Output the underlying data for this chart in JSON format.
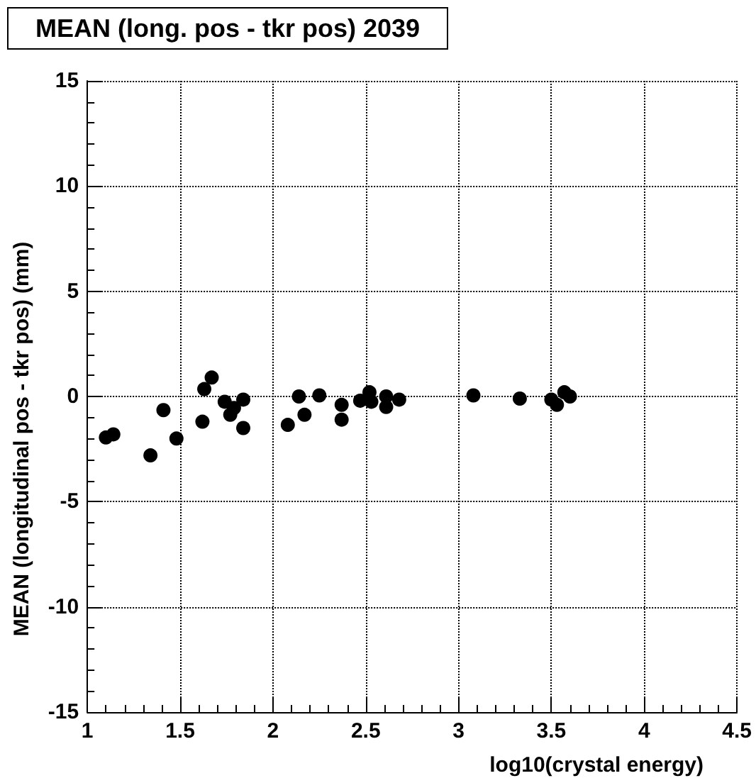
{
  "chart_data": {
    "type": "scatter",
    "title": "MEAN (long. pos - tkr pos) 2039",
    "xlabel": "log10(crystal energy)",
    "ylabel": "MEAN (longitudinal pos - tkr pos) (mm)",
    "x": [
      1.1,
      1.14,
      1.34,
      1.41,
      1.48,
      1.62,
      1.63,
      1.67,
      1.74,
      1.77,
      1.79,
      1.84,
      1.84,
      2.08,
      2.17,
      2.14,
      2.25,
      2.37,
      2.37,
      2.47,
      2.52,
      2.53,
      2.61,
      2.61,
      2.68,
      3.08,
      3.33,
      3.5,
      3.53,
      3.57,
      3.6
    ],
    "values": [
      -1.95,
      -1.8,
      -2.8,
      -0.65,
      -2.0,
      -1.2,
      0.35,
      0.9,
      -0.25,
      -0.87,
      -0.55,
      -0.15,
      -1.5,
      -1.35,
      -0.87,
      0,
      0.05,
      -0.4,
      -1.1,
      -0.2,
      0.2,
      -0.25,
      0,
      -0.5,
      -0.15,
      0.05,
      -0.1,
      -0.15,
      -0.4,
      0.2,
      0
    ],
    "color": "#000000",
    "marker": "circle",
    "grid": true,
    "xlim": [
      1,
      4.5
    ],
    "xticks": [
      1,
      1.5,
      2,
      2.5,
      3,
      3.5,
      4,
      4.5
    ],
    "ylim": [
      -15,
      15
    ],
    "yticks": [
      -15,
      -10,
      -5,
      0,
      5,
      10,
      15
    ]
  }
}
